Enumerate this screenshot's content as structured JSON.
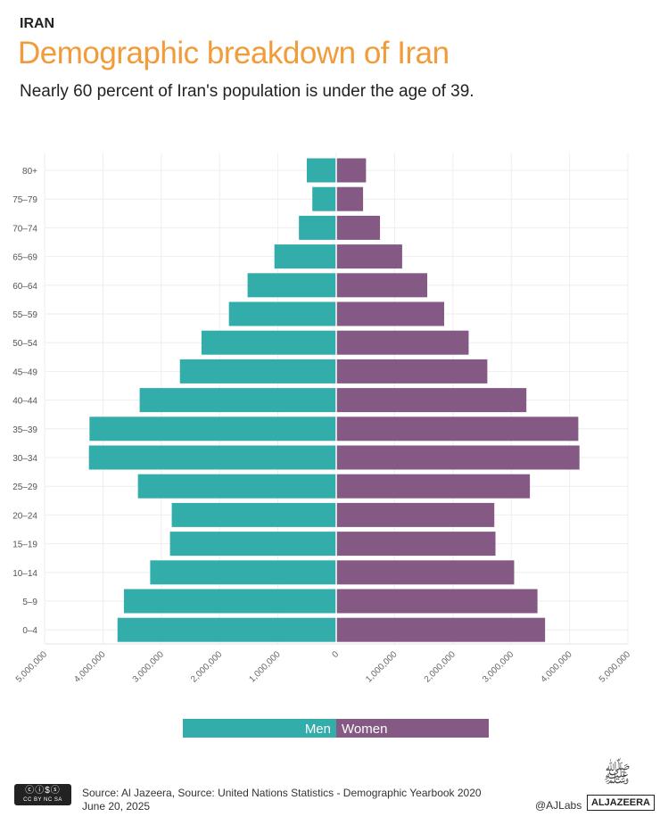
{
  "header": {
    "kicker": "IRAN",
    "title": "Demographic breakdown of Iran",
    "subtitle": "Nearly 60 percent of Iran's population is under the age of 39."
  },
  "chart_data": {
    "type": "bar",
    "orientation": "horizontal-pyramid",
    "categories": [
      "80+",
      "75–79",
      "70–74",
      "65–69",
      "60–64",
      "55–59",
      "50–54",
      "45–49",
      "40–44",
      "35–39",
      "30–34",
      "25–29",
      "20–24",
      "15–19",
      "10–14",
      "5–9",
      "0–4"
    ],
    "series": [
      {
        "name": "Men",
        "color": "#33ada9",
        "values": [
          505000,
          410000,
          640000,
          1060000,
          1520000,
          1840000,
          2310000,
          2680000,
          3370000,
          4230000,
          4240000,
          3400000,
          2820000,
          2850000,
          3190000,
          3640000,
          3750000
        ]
      },
      {
        "name": "Women",
        "color": "#845a85",
        "values": [
          510000,
          460000,
          750000,
          1130000,
          1560000,
          1850000,
          2270000,
          2590000,
          3260000,
          4150000,
          4170000,
          3320000,
          2710000,
          2730000,
          3050000,
          3450000,
          3580000
        ]
      }
    ],
    "xlim": [
      -5000000,
      5000000
    ],
    "xticks": [
      -5000000,
      -4000000,
      -3000000,
      -2000000,
      -1000000,
      0,
      1000000,
      2000000,
      3000000,
      4000000,
      5000000
    ],
    "xtick_labels": [
      "5,000,000",
      "4,000,000",
      "3,000,000",
      "2,000,000",
      "1,000,000",
      "0",
      "1,000,000",
      "2,000,000",
      "3,000,000",
      "4,000,000",
      "5,000,000"
    ],
    "legend": {
      "men": "Men",
      "women": "Women",
      "placement": "bottom-center"
    },
    "grid": true
  },
  "footer": {
    "source": "Source:  Al Jazeera, Source: United Nations Statistics - Demographic Yearbook 2020",
    "date": "June 20, 2025",
    "handle": "@AJLabs",
    "logo": "ALJAZEERA",
    "license": "CC BY NC SA"
  }
}
